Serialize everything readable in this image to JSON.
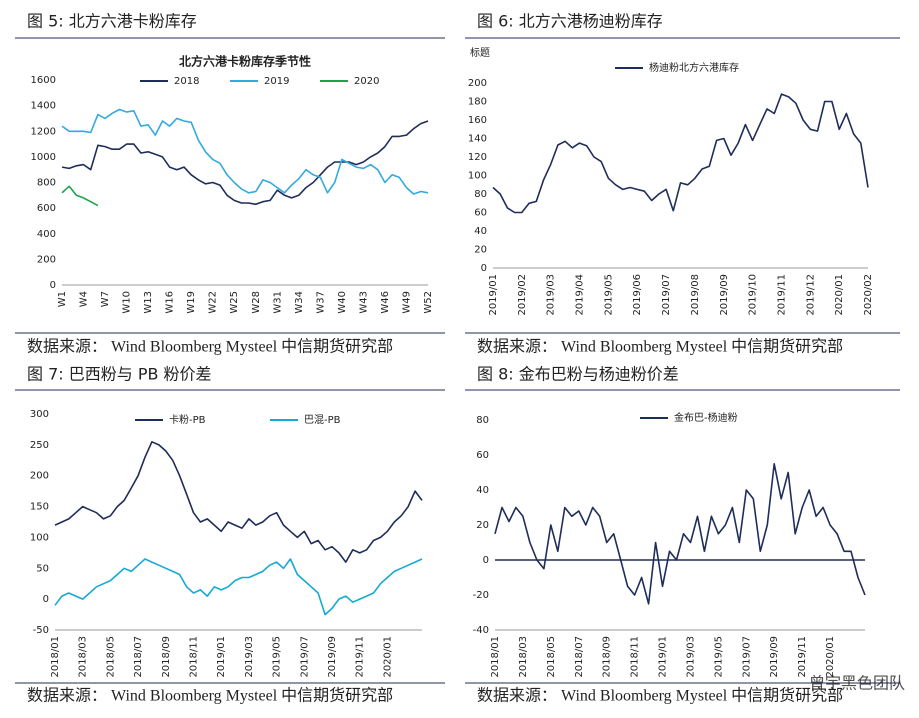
{
  "chart_data": [
    {
      "type": "line",
      "caption": "图 5:    北方六港卡粉库存",
      "title": "北方六港卡粉库存季节性",
      "source": "数据来源：  Wind Bloomberg Mysteel 中信期货研究部",
      "categories": [
        "W1",
        null,
        null,
        "W4",
        null,
        null,
        "W7",
        null,
        null,
        "W10",
        null,
        null,
        "W13",
        null,
        null,
        "W16",
        null,
        null,
        "W19",
        null,
        null,
        "W22",
        null,
        null,
        "W25",
        null,
        null,
        "W28",
        null,
        null,
        "W31",
        null,
        null,
        "W34",
        null,
        null,
        "W37",
        null,
        null,
        "W40",
        null,
        null,
        "W43",
        null,
        null,
        "W46",
        null,
        null,
        "W49",
        null,
        null,
        "W52"
      ],
      "series": [
        {
          "name": "2018",
          "color": "#1f2d5a",
          "values": [
            920,
            910,
            930,
            940,
            900,
            1090,
            1080,
            1060,
            1060,
            1100,
            1100,
            1030,
            1040,
            1020,
            1000,
            920,
            900,
            920,
            860,
            820,
            790,
            800,
            780,
            700,
            660,
            640,
            640,
            630,
            650,
            660,
            740,
            700,
            680,
            700,
            760,
            800,
            860,
            920,
            960,
            960,
            960,
            940,
            960,
            1000,
            1030,
            1080,
            1160,
            1160,
            1170,
            1220,
            1260,
            1280
          ]
        },
        {
          "name": "2019",
          "color": "#33aadd",
          "values": [
            1240,
            1200,
            1200,
            1200,
            1190,
            1330,
            1300,
            1340,
            1370,
            1350,
            1360,
            1240,
            1250,
            1170,
            1280,
            1240,
            1300,
            1280,
            1270,
            1130,
            1040,
            980,
            950,
            860,
            800,
            750,
            720,
            730,
            820,
            800,
            760,
            720,
            780,
            830,
            900,
            860,
            840,
            720,
            800,
            980,
            950,
            920,
            910,
            940,
            900,
            800,
            860,
            840,
            760,
            710,
            730,
            720
          ]
        },
        {
          "name": "2020",
          "color": "#1aa34a",
          "values": [
            720,
            770,
            700,
            680,
            650,
            620,
            null,
            null,
            null,
            null,
            null,
            null,
            null,
            null,
            null,
            null,
            null,
            null,
            null,
            null,
            null,
            null,
            null,
            null,
            null,
            null,
            null,
            null,
            null,
            null,
            null,
            null,
            null,
            null,
            null,
            null,
            null,
            null,
            null,
            null,
            null,
            null,
            null,
            null,
            null,
            null,
            null,
            null,
            null,
            null,
            null,
            null
          ]
        }
      ],
      "ylim": [
        0,
        1600
      ],
      "yticks": [
        0,
        200,
        400,
        600,
        800,
        1000,
        1200,
        1400,
        1600
      ],
      "legend": "top"
    },
    {
      "type": "line",
      "caption": "图 6:    北方六港杨迪粉库存",
      "ylabel": "标题",
      "source": "数据来源：  Wind Bloomberg Mysteel 中信期货研究部",
      "categories": [
        "2019/01",
        null,
        null,
        null,
        "2019/02",
        null,
        null,
        null,
        "2019/03",
        null,
        null,
        null,
        "2019/04",
        null,
        null,
        null,
        "2019/05",
        null,
        null,
        null,
        "2019/06",
        null,
        null,
        null,
        "2019/07",
        null,
        null,
        null,
        "2019/08",
        null,
        null,
        null,
        "2019/09",
        null,
        null,
        null,
        "2019/10",
        null,
        null,
        null,
        "2019/11",
        null,
        null,
        null,
        "2019/12",
        null,
        null,
        null,
        "2020/01",
        null,
        null,
        null,
        "2020/02"
      ],
      "series": [
        {
          "name": "杨迪粉北方六港库存",
          "color": "#1f2d5a",
          "values": [
            87,
            80,
            65,
            60,
            60,
            70,
            72,
            95,
            112,
            133,
            137,
            130,
            135,
            132,
            120,
            115,
            97,
            90,
            85,
            87,
            85,
            83,
            73,
            80,
            85,
            62,
            92,
            90,
            97,
            107,
            110,
            138,
            140,
            122,
            135,
            155,
            138,
            155,
            172,
            167,
            188,
            185,
            178,
            160,
            150,
            148,
            180,
            180,
            150,
            167,
            145,
            135,
            87
          ]
        }
      ],
      "ylim": [
        0,
        200
      ],
      "yticks": [
        0,
        20,
        40,
        60,
        80,
        100,
        120,
        140,
        160,
        180,
        200
      ],
      "legend": "top"
    },
    {
      "type": "line",
      "caption": "图 7:    巴西粉与 PB 粉价差",
      "source": "数据来源：  Wind Bloomberg Mysteel 中信期货研究部",
      "categories": [
        "2018/01",
        null,
        null,
        null,
        "2018/03",
        null,
        null,
        null,
        "2018/05",
        null,
        null,
        null,
        "2018/07",
        null,
        null,
        null,
        "2018/09",
        null,
        null,
        null,
        "2018/11",
        null,
        null,
        null,
        "2019/01",
        null,
        null,
        null,
        "2019/03",
        null,
        null,
        null,
        "2019/05",
        null,
        null,
        null,
        "2019/07",
        null,
        null,
        null,
        "2019/09",
        null,
        null,
        null,
        "2019/11",
        null,
        null,
        null,
        "2020/01",
        null,
        null,
        null,
        null,
        null
      ],
      "series": [
        {
          "name": "卡粉-PB",
          "color": "#1f2d5a",
          "values": [
            120,
            125,
            130,
            140,
            150,
            145,
            140,
            130,
            135,
            150,
            160,
            180,
            200,
            230,
            255,
            250,
            240,
            225,
            200,
            170,
            140,
            125,
            130,
            120,
            110,
            125,
            120,
            115,
            130,
            120,
            125,
            135,
            140,
            120,
            110,
            100,
            110,
            90,
            95,
            80,
            85,
            75,
            60,
            80,
            75,
            80,
            95,
            100,
            110,
            125,
            135,
            150,
            175,
            160
          ]
        },
        {
          "name": "巴混-PB",
          "color": "#16a9d6",
          "values": [
            -10,
            5,
            10,
            5,
            0,
            10,
            20,
            25,
            30,
            40,
            50,
            45,
            55,
            65,
            60,
            55,
            50,
            45,
            40,
            20,
            10,
            15,
            5,
            20,
            15,
            20,
            30,
            35,
            35,
            40,
            45,
            55,
            60,
            50,
            65,
            40,
            30,
            20,
            10,
            -25,
            -15,
            0,
            5,
            -5,
            0,
            5,
            10,
            25,
            35,
            45,
            50,
            55,
            60,
            65
          ]
        }
      ],
      "ylim": [
        -50,
        300
      ],
      "yticks": [
        -50,
        0,
        50,
        100,
        150,
        200,
        250,
        300
      ],
      "legend": "top"
    },
    {
      "type": "line",
      "caption": "图 8:    金布巴粉与杨迪粉价差",
      "source": "数据来源：  Wind Bloomberg Mysteel 中信期货研究部",
      "watermark": "曾宇黑色团队",
      "categories": [
        "2018/01",
        null,
        null,
        null,
        "2018/03",
        null,
        null,
        null,
        "2018/05",
        null,
        null,
        null,
        "2018/07",
        null,
        null,
        null,
        "2018/09",
        null,
        null,
        null,
        "2018/11",
        null,
        null,
        null,
        "2019/01",
        null,
        null,
        null,
        "2019/03",
        null,
        null,
        null,
        "2019/05",
        null,
        null,
        null,
        "2019/07",
        null,
        null,
        null,
        "2019/09",
        null,
        null,
        null,
        "2019/11",
        null,
        null,
        null,
        "2020/01",
        null,
        null,
        null,
        null,
        null
      ],
      "series": [
        {
          "name": "金布巴-杨迪粉",
          "color": "#1f2d5a",
          "values": [
            15,
            30,
            22,
            30,
            25,
            10,
            0,
            -5,
            20,
            5,
            30,
            25,
            28,
            20,
            30,
            25,
            10,
            15,
            0,
            -15,
            -20,
            -10,
            -25,
            10,
            -15,
            5,
            0,
            15,
            10,
            25,
            5,
            25,
            15,
            20,
            30,
            10,
            40,
            35,
            5,
            20,
            55,
            35,
            50,
            15,
            30,
            40,
            25,
            30,
            20,
            15,
            5,
            5,
            -10,
            -20
          ]
        }
      ],
      "ylim": [
        -40,
        80
      ],
      "yticks": [
        -40,
        -20,
        0,
        20,
        40,
        60,
        80
      ],
      "legend": "top",
      "zero_line": true
    }
  ]
}
